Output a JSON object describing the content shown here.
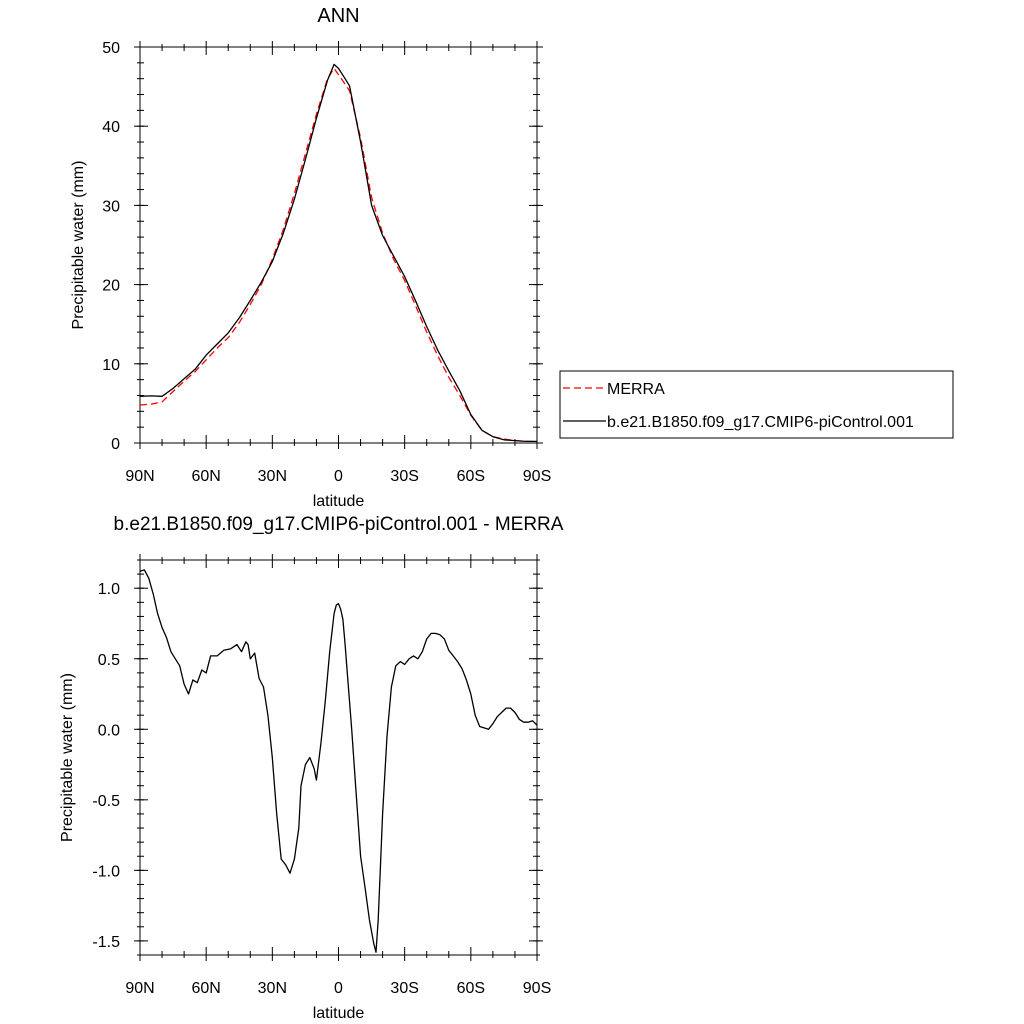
{
  "chart_data": [
    {
      "type": "line",
      "title": "ANN",
      "xlabel": "latitude",
      "ylabel": "Precipitable water (mm)",
      "xlim": [
        90,
        -90
      ],
      "ylim": [
        0,
        50
      ],
      "x_ticks": [
        90,
        60,
        30,
        0,
        -30,
        -60,
        -90
      ],
      "x_tick_labels": [
        "90N",
        "60N",
        "30N",
        "0",
        "30S",
        "60S",
        "90S"
      ],
      "y_ticks": [
        0,
        10,
        20,
        30,
        40,
        50
      ],
      "y_tick_labels": [
        "0",
        "10",
        "20",
        "30",
        "40",
        "50"
      ],
      "grid": false,
      "legend_position": "right",
      "series": [
        {
          "name": "MERRA",
          "color": "#ff0000",
          "style": "dashed",
          "x": [
            90,
            85,
            80,
            75,
            70,
            65,
            60,
            55,
            50,
            45,
            40,
            35,
            30,
            25,
            20,
            15,
            10,
            5,
            2,
            0,
            -3,
            -5,
            -10,
            -15,
            -20,
            -25,
            -30,
            -35,
            -40,
            -45,
            -50,
            -55,
            -60,
            -65,
            -70,
            -75,
            -80,
            -85,
            -90
          ],
          "values": [
            4.8,
            4.9,
            5.2,
            6.5,
            7.8,
            9.0,
            10.5,
            12.0,
            13.3,
            15.2,
            17.5,
            20.0,
            23.2,
            27.0,
            31.5,
            36.5,
            41.5,
            46.0,
            47.3,
            46.5,
            45.3,
            44.5,
            38.5,
            31.0,
            26.5,
            23.2,
            20.5,
            17.3,
            14.0,
            11.0,
            8.3,
            6.0,
            3.5,
            1.6,
            0.8,
            0.5,
            0.3,
            0.2,
            0.2
          ]
        },
        {
          "name": "b.e21.B1850.f09_g17.CMIP6-piControl.001",
          "color": "#000000",
          "style": "solid",
          "x": [
            90,
            85,
            80,
            75,
            70,
            65,
            60,
            55,
            50,
            45,
            40,
            35,
            30,
            25,
            20,
            15,
            10,
            5,
            2,
            0,
            -3,
            -5,
            -10,
            -15,
            -20,
            -25,
            -30,
            -35,
            -40,
            -45,
            -50,
            -55,
            -60,
            -65,
            -70,
            -75,
            -80,
            -85,
            -90
          ],
          "values": [
            5.9,
            5.95,
            5.9,
            6.9,
            8.1,
            9.3,
            11.1,
            12.5,
            13.9,
            15.8,
            18.0,
            20.3,
            22.9,
            26.5,
            30.8,
            35.8,
            41.0,
            45.8,
            47.8,
            47.3,
            46.0,
            45.1,
            38.0,
            30.0,
            26.2,
            23.6,
            21.0,
            17.9,
            14.7,
            11.7,
            9.1,
            6.6,
            3.6,
            1.6,
            0.8,
            0.4,
            0.3,
            0.2,
            0.2
          ]
        }
      ]
    },
    {
      "type": "line",
      "title": "b.e21.B1850.f09_g17.CMIP6-piControl.001 - MERRA",
      "xlabel": "latitude",
      "ylabel": "Precipitable water (mm)",
      "xlim": [
        90,
        -90
      ],
      "ylim": [
        -1.6,
        1.2
      ],
      "x_ticks": [
        90,
        60,
        30,
        0,
        -30,
        -60,
        -90
      ],
      "x_tick_labels": [
        "90N",
        "60N",
        "30N",
        "0",
        "30S",
        "60S",
        "90S"
      ],
      "y_ticks": [
        1.0,
        0.5,
        0.0,
        -0.5,
        -1.0,
        -1.5
      ],
      "y_tick_labels": [
        "1.0",
        "0.5",
        "0.0",
        "-0.5",
        "-1.0",
        "-1.5"
      ],
      "grid": false,
      "series": [
        {
          "color": "#000000",
          "style": "solid",
          "x": [
            90,
            88,
            86,
            84,
            82,
            80,
            78,
            76,
            74,
            72,
            70,
            68,
            66,
            64,
            62,
            60,
            58,
            55,
            52,
            49,
            46,
            44,
            42,
            41,
            40,
            38,
            36,
            34,
            32,
            30,
            28,
            26,
            24,
            22,
            20,
            18,
            17,
            15,
            13,
            11,
            10,
            8,
            6,
            4,
            2,
            1,
            0,
            -1,
            -2,
            -3,
            -4,
            -6,
            -8,
            -10,
            -12,
            -14,
            -16,
            -17,
            -18,
            -19,
            -20,
            -22,
            -24,
            -26,
            -28,
            -30,
            -32,
            -34,
            -36,
            -38,
            -40,
            -42,
            -44,
            -46,
            -48,
            -50,
            -52,
            -54,
            -56,
            -58,
            -60,
            -62,
            -64,
            -66,
            -68,
            -70,
            -72,
            -74,
            -76,
            -78,
            -80,
            -82,
            -84,
            -86,
            -88,
            -90
          ],
          "values": [
            1.12,
            1.13,
            1.07,
            0.96,
            0.82,
            0.72,
            0.65,
            0.55,
            0.5,
            0.45,
            0.32,
            0.25,
            0.35,
            0.33,
            0.42,
            0.4,
            0.52,
            0.52,
            0.56,
            0.57,
            0.6,
            0.55,
            0.62,
            0.6,
            0.5,
            0.54,
            0.36,
            0.3,
            0.1,
            -0.2,
            -0.6,
            -0.92,
            -0.96,
            -1.02,
            -0.92,
            -0.7,
            -0.4,
            -0.25,
            -0.2,
            -0.28,
            -0.36,
            -0.1,
            0.2,
            0.55,
            0.82,
            0.88,
            0.89,
            0.85,
            0.78,
            0.6,
            0.4,
            0.0,
            -0.45,
            -0.9,
            -1.12,
            -1.35,
            -1.52,
            -1.58,
            -1.35,
            -0.98,
            -0.6,
            -0.05,
            0.3,
            0.45,
            0.48,
            0.46,
            0.5,
            0.52,
            0.5,
            0.55,
            0.64,
            0.68,
            0.68,
            0.67,
            0.64,
            0.56,
            0.52,
            0.48,
            0.43,
            0.35,
            0.25,
            0.1,
            0.02,
            0.01,
            0.0,
            0.04,
            0.09,
            0.12,
            0.15,
            0.15,
            0.12,
            0.07,
            0.05,
            0.05,
            0.06,
            0.03
          ]
        }
      ]
    }
  ]
}
